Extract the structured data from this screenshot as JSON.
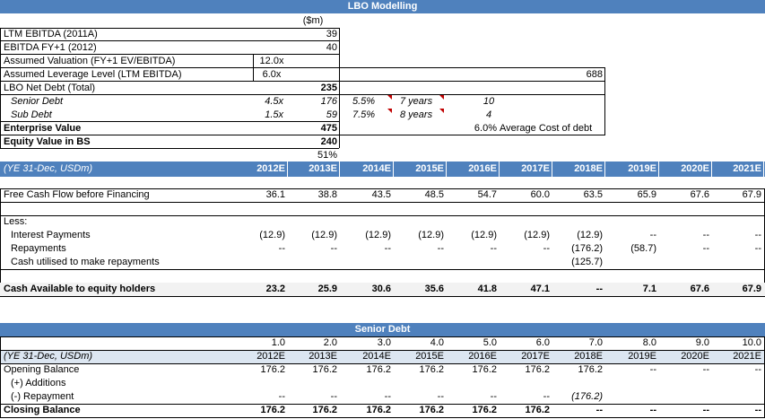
{
  "title": "LBO Modelling",
  "unit_label": "($m)",
  "inputs": [
    {
      "label": "LTM EBITDA (2011A)",
      "value": "39"
    },
    {
      "label": "EBITDA FY+1 (2012)",
      "value": "40"
    },
    {
      "label": "Assumed Valuation (FY+1 EV/EBITDA)",
      "multiple": "12.0x"
    },
    {
      "label": "Assumed Leverage Level (LTM EBITDA)",
      "multiple": "6.0x",
      "extra": "688"
    }
  ],
  "net_debt": {
    "label": "LBO Net Debt (Total)",
    "value": "235"
  },
  "senior": {
    "label": "Senior Debt",
    "multiple": "4.5x",
    "value": "176",
    "rate": "5.5%",
    "term": "7 years",
    "years": "10"
  },
  "sub": {
    "label": "Sub Debt",
    "multiple": "1.5x",
    "value": "59",
    "rate": "7.5%",
    "term": "8 years",
    "years": "4"
  },
  "ev": {
    "label": "Enterprise Value",
    "value": "475",
    "avg_cost": "6.0%",
    "avg_cost_label": "Average Cost of debt"
  },
  "equity": {
    "label": "Equity Value in BS",
    "value": "240",
    "pct": "51%"
  },
  "year_label": "(YE 31-Dec, USDm)",
  "years": [
    "2012E",
    "2013E",
    "2014E",
    "2015E",
    "2016E",
    "2017E",
    "2018E",
    "2019E",
    "2020E",
    "2021E"
  ],
  "fcf": {
    "label": "Free Cash Flow before Financing",
    "values": [
      "36.1",
      "38.8",
      "43.5",
      "48.5",
      "54.7",
      "60.0",
      "63.5",
      "65.9",
      "67.6",
      "67.9"
    ]
  },
  "less_label": "Less:",
  "interest": {
    "label": "Interest Payments",
    "values": [
      "(12.9)",
      "(12.9)",
      "(12.9)",
      "(12.9)",
      "(12.9)",
      "(12.9)",
      "(12.9)",
      "--",
      "--",
      "--"
    ]
  },
  "repayments": {
    "label": "Repayments",
    "values": [
      "--",
      "--",
      "--",
      "--",
      "--",
      "--",
      "(176.2)",
      "(58.7)",
      "--",
      "--"
    ]
  },
  "cash_util": {
    "label": "Cash utilised to make repayments",
    "values": [
      "",
      "",
      "",
      "",
      "",
      "",
      "(125.7)",
      "",
      "",
      ""
    ]
  },
  "cash_avail": {
    "label": "Cash Available to equity holders",
    "values": [
      "23.2",
      "25.9",
      "30.6",
      "35.6",
      "41.8",
      "47.1",
      "--",
      "7.1",
      "67.6",
      "67.9"
    ]
  },
  "senior_section": {
    "title": "Senior Debt",
    "periods": [
      "1.0",
      "2.0",
      "3.0",
      "4.0",
      "5.0",
      "6.0",
      "7.0",
      "8.0",
      "9.0",
      "10.0"
    ],
    "opening": {
      "label": "Opening Balance",
      "values": [
        "176.2",
        "176.2",
        "176.2",
        "176.2",
        "176.2",
        "176.2",
        "176.2",
        "--",
        "--",
        "--"
      ]
    },
    "additions": {
      "label": "(+) Additions",
      "values": [
        "",
        "",
        "",
        "",
        "",
        "",
        "",
        "",
        "",
        ""
      ]
    },
    "repayment": {
      "label": "(-) Repayment",
      "values": [
        "--",
        "--",
        "--",
        "--",
        "--",
        "--",
        "(176.2)",
        "",
        "",
        ""
      ]
    },
    "closing": {
      "label": "Closing Balance",
      "values": [
        "176.2",
        "176.2",
        "176.2",
        "176.2",
        "176.2",
        "176.2",
        "--",
        "--",
        "--",
        "--"
      ]
    }
  },
  "colors": {
    "header": "#4f81bd",
    "flag": "#c00000"
  }
}
